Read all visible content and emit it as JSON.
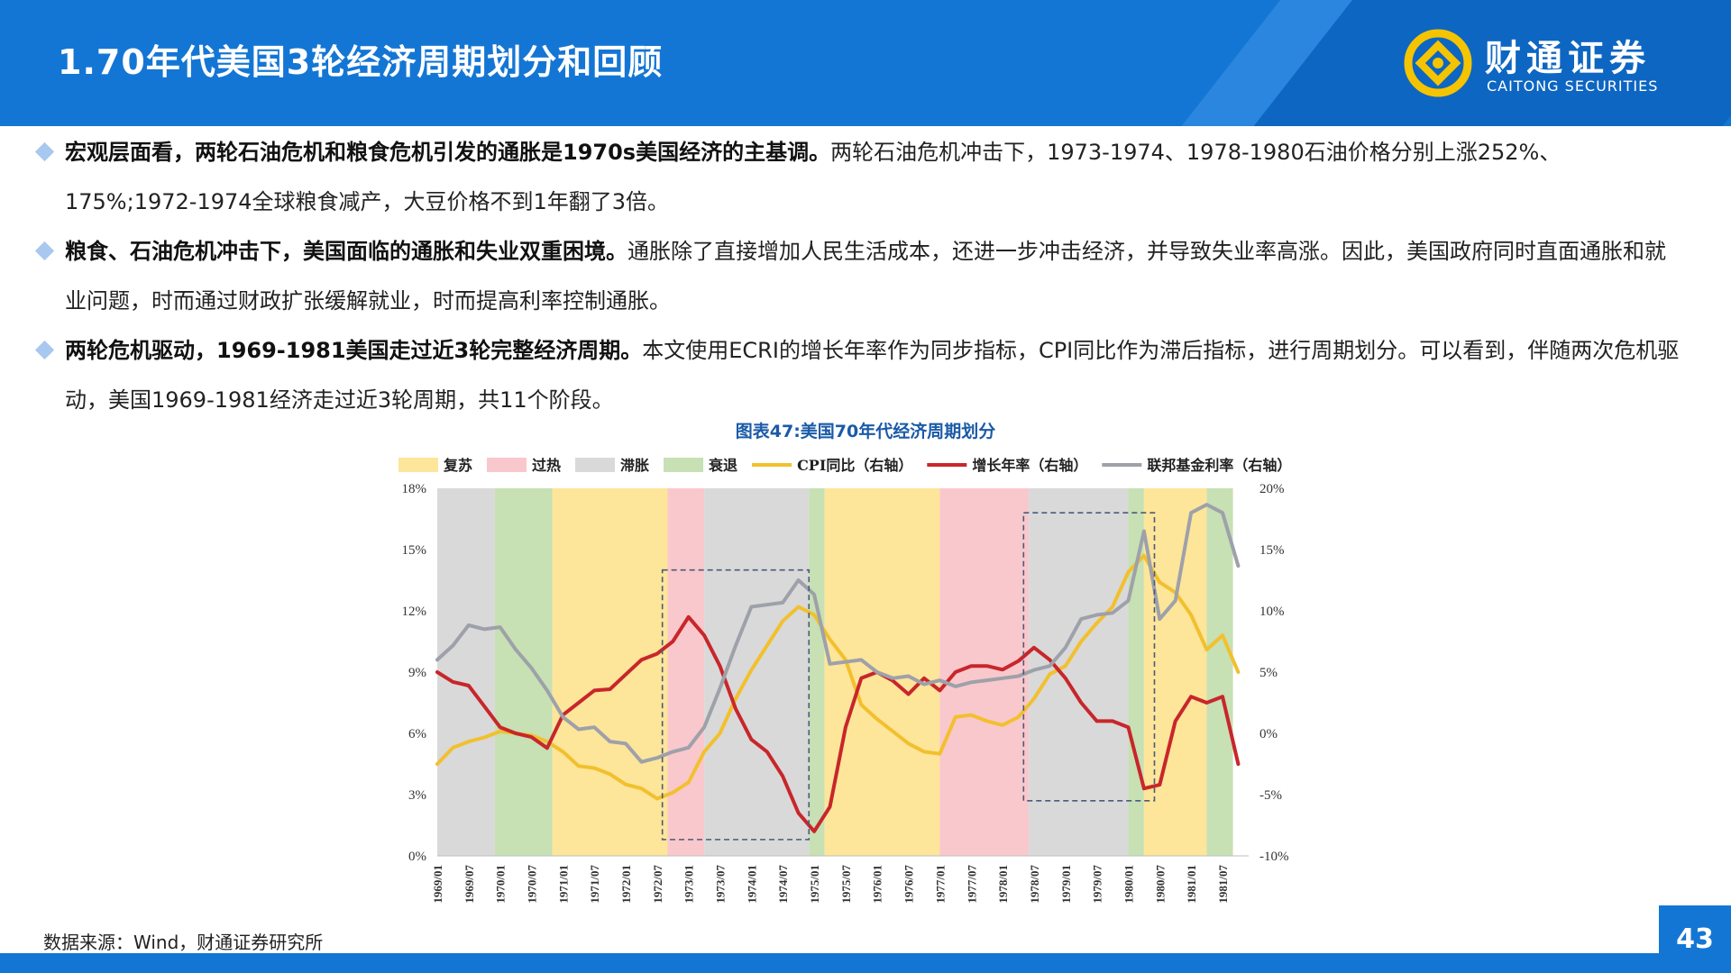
{
  "header": {
    "title": "1.70年代美国3轮经济周期划分和回顾",
    "logo_cn": "财通证券",
    "logo_en": "CAITONG SECURITIES"
  },
  "bullets": [
    {
      "lead": "宏观层面看，两轮石油危机和粮食危机引发的通胀是1970s美国经济的主基调。",
      "body": "两轮石油危机冲击下，1973-1974、1978-1980石油价格分别上涨252%、175%;1972-1974全球粮食减产，大豆价格不到1年翻了3倍。"
    },
    {
      "lead": "粮食、石油危机冲击下，美国面临的通胀和失业双重困境。",
      "body": "通胀除了直接增加人民生活成本，还进一步冲击经济，并导致失业率高涨。因此，美国政府同时直面通胀和就业问题，时而通过财政扩张缓解就业，时而提高利率控制通胀。"
    },
    {
      "lead": "两轮危机驱动，1969-1981美国走过近3轮完整经济周期。",
      "body": "本文使用ECRI的增长年率作为同步指标，CPI同比作为滞后指标，进行周期划分。可以看到，伴随两次危机驱动，美国1969-1981经济走过近3轮周期，共11个阶段。"
    }
  ],
  "chart_title": "图表47:美国70年代经济周期划分",
  "footer": {
    "source": "数据来源：Wind，财通证券研究所",
    "page": "43"
  },
  "chart_data": {
    "type": "line",
    "legend_position": "top",
    "legend": [
      {
        "name": "复苏",
        "kind": "patch",
        "color": "#fde59a"
      },
      {
        "name": "过热",
        "kind": "patch",
        "color": "#f9c8cc"
      },
      {
        "name": "滞胀",
        "kind": "patch",
        "color": "#d9d9d9"
      },
      {
        "name": "衰退",
        "kind": "patch",
        "color": "#c7e0b4"
      },
      {
        "name": "CPI同比（右轴）",
        "kind": "line",
        "color": "#f2c02e"
      },
      {
        "name": "增长年率（右轴）",
        "kind": "line",
        "color": "#c8262b"
      },
      {
        "name": "联邦基金利率（右轴）",
        "kind": "line",
        "color": "#9ea1a9"
      }
    ],
    "x_ticks": [
      "1969/01",
      "1969/07",
      "1970/01",
      "1970/07",
      "1971/01",
      "1971/07",
      "1972/01",
      "1972/07",
      "1973/01",
      "1973/07",
      "1974/01",
      "1974/07",
      "1975/01",
      "1975/07",
      "1976/01",
      "1976/07",
      "1977/01",
      "1977/07",
      "1978/01",
      "1978/07",
      "1979/01",
      "1979/07",
      "1980/01",
      "1980/07",
      "1981/01",
      "1981/07"
    ],
    "y_left": {
      "min": 0,
      "max": 18,
      "ticks": [
        "0%",
        "3%",
        "6%",
        "9%",
        "12%",
        "15%",
        "18%"
      ]
    },
    "y_right": {
      "min": -10,
      "max": 20,
      "ticks": [
        "-10%",
        "-5%",
        "0%",
        "5%",
        "10%",
        "15%",
        "20%"
      ]
    },
    "phases": [
      {
        "phase": "滞胀",
        "start": "1969/01",
        "end": "1969/12"
      },
      {
        "phase": "衰退",
        "start": "1969/12",
        "end": "1970/11"
      },
      {
        "phase": "复苏",
        "start": "1970/11",
        "end": "1972/09"
      },
      {
        "phase": "过热",
        "start": "1972/09",
        "end": "1973/04"
      },
      {
        "phase": "滞胀",
        "start": "1973/04",
        "end": "1974/12"
      },
      {
        "phase": "衰退",
        "start": "1974/12",
        "end": "1975/03"
      },
      {
        "phase": "复苏",
        "start": "1975/03",
        "end": "1977/01"
      },
      {
        "phase": "过热",
        "start": "1977/01",
        "end": "1978/06"
      },
      {
        "phase": "滞胀",
        "start": "1978/06",
        "end": "1980/01"
      },
      {
        "phase": "衰退",
        "start": "1980/01",
        "end": "1980/04"
      },
      {
        "phase": "复苏",
        "start": "1980/04",
        "end": "1981/04"
      },
      {
        "phase": "衰退",
        "start": "1981/04",
        "end": "1981/09"
      }
    ],
    "highlight_boxes": [
      {
        "start": "1972/08",
        "end": "1974/12",
        "y_top": 14,
        "y_bottom": 0.8
      },
      {
        "start": "1978/05",
        "end": "1980/06",
        "y_top": 16.8,
        "y_bottom": 2.7
      }
    ],
    "series": [
      {
        "name": "CPI同比（右轴）",
        "axis": "left",
        "x": [
          "1969/01",
          "1969/04",
          "1969/07",
          "1969/10",
          "1970/01",
          "1970/04",
          "1970/07",
          "1970/10",
          "1971/01",
          "1971/04",
          "1971/07",
          "1971/10",
          "1972/01",
          "1972/04",
          "1972/07",
          "1972/10",
          "1973/01",
          "1973/04",
          "1973/07",
          "1973/10",
          "1974/01",
          "1974/04",
          "1974/07",
          "1974/10",
          "1975/01",
          "1975/04",
          "1975/07",
          "1975/10",
          "1976/01",
          "1976/04",
          "1976/07",
          "1976/10",
          "1977/01",
          "1977/04",
          "1977/07",
          "1977/10",
          "1978/01",
          "1978/04",
          "1978/07",
          "1978/10",
          "1979/01",
          "1979/04",
          "1979/07",
          "1979/10",
          "1980/01",
          "1980/04",
          "1980/07",
          "1980/10",
          "1981/01",
          "1981/04",
          "1981/07",
          "1981/10"
        ],
        "values": [
          4.5,
          5.3,
          5.6,
          5.8,
          6.1,
          6.0,
          5.9,
          5.6,
          5.1,
          4.4,
          4.3,
          4.0,
          3.5,
          3.3,
          2.8,
          3.1,
          3.6,
          5.1,
          6.0,
          7.7,
          9.1,
          10.3,
          11.5,
          12.2,
          11.8,
          10.6,
          9.6,
          7.4,
          6.7,
          6.1,
          5.5,
          5.1,
          5.0,
          6.8,
          6.9,
          6.6,
          6.4,
          6.8,
          7.7,
          8.9,
          9.3,
          10.5,
          11.4,
          12.2,
          13.9,
          14.7,
          13.4,
          12.9,
          11.8,
          10.1,
          10.8,
          9.0
        ]
      },
      {
        "name": "增长年率（右轴）",
        "axis": "right",
        "x": [
          "1969/01",
          "1969/04",
          "1969/07",
          "1969/10",
          "1970/01",
          "1970/04",
          "1970/07",
          "1970/10",
          "1971/01",
          "1971/04",
          "1971/07",
          "1971/10",
          "1972/01",
          "1972/04",
          "1972/07",
          "1972/10",
          "1973/01",
          "1973/04",
          "1973/07",
          "1973/10",
          "1974/01",
          "1974/04",
          "1974/07",
          "1974/10",
          "1975/01",
          "1975/04",
          "1975/07",
          "1975/10",
          "1976/01",
          "1976/04",
          "1976/07",
          "1976/10",
          "1977/01",
          "1977/04",
          "1977/07",
          "1977/10",
          "1978/01",
          "1978/04",
          "1978/07",
          "1978/10",
          "1979/01",
          "1979/04",
          "1979/07",
          "1979/10",
          "1980/01",
          "1980/04",
          "1980/07",
          "1980/10",
          "1981/01",
          "1981/04",
          "1981/07",
          "1981/10"
        ],
        "values": [
          5,
          4.2,
          3.9,
          2.2,
          0.5,
          0,
          -0.3,
          -1.2,
          1.5,
          2.5,
          3.5,
          3.6,
          4.8,
          6.0,
          6.5,
          7.5,
          9.5,
          8.0,
          5.5,
          2.0,
          -0.5,
          -1.5,
          -3.5,
          -6.5,
          -8.0,
          -6.0,
          0.5,
          4.5,
          5.0,
          4.3,
          3.2,
          4.5,
          3.5,
          5.0,
          5.5,
          5.5,
          5.2,
          5.9,
          7.0,
          6.0,
          4.5,
          2.5,
          1.0,
          1.0,
          0.5,
          -4.5,
          -4.2,
          1.0,
          3.0,
          2.5,
          3.0,
          -2.5
        ]
      },
      {
        "name": "联邦基金利率（右轴）",
        "axis": "left",
        "x": [
          "1969/01",
          "1969/04",
          "1969/07",
          "1969/10",
          "1970/01",
          "1970/04",
          "1970/07",
          "1970/10",
          "1971/01",
          "1971/04",
          "1971/07",
          "1971/10",
          "1972/01",
          "1972/04",
          "1972/07",
          "1972/10",
          "1973/01",
          "1973/04",
          "1973/07",
          "1973/10",
          "1974/01",
          "1974/04",
          "1974/07",
          "1974/10",
          "1975/01",
          "1975/04",
          "1975/07",
          "1975/10",
          "1976/01",
          "1976/04",
          "1976/07",
          "1976/10",
          "1977/01",
          "1977/04",
          "1977/07",
          "1977/10",
          "1978/01",
          "1978/04",
          "1978/07",
          "1978/10",
          "1979/01",
          "1979/04",
          "1979/07",
          "1979/10",
          "1980/01",
          "1980/04",
          "1980/07",
          "1980/10",
          "1981/01",
          "1981/04",
          "1981/07",
          "1981/10"
        ],
        "values": [
          9.6,
          10.3,
          11.3,
          11.1,
          11.2,
          10.1,
          9.2,
          8.1,
          6.8,
          6.2,
          6.3,
          5.6,
          5.5,
          4.6,
          4.8,
          5.1,
          5.3,
          6.3,
          8.2,
          10.3,
          12.2,
          12.3,
          12.4,
          13.5,
          12.8,
          9.4,
          9.5,
          9.6,
          9.0,
          8.7,
          8.8,
          8.4,
          8.6,
          8.3,
          8.5,
          8.6,
          8.7,
          8.8,
          9.1,
          9.3,
          10.2,
          11.6,
          11.8,
          11.9,
          12.5,
          15.9,
          11.6,
          12.5,
          16.8,
          17.2,
          16.8,
          14.2
        ]
      }
    ]
  }
}
